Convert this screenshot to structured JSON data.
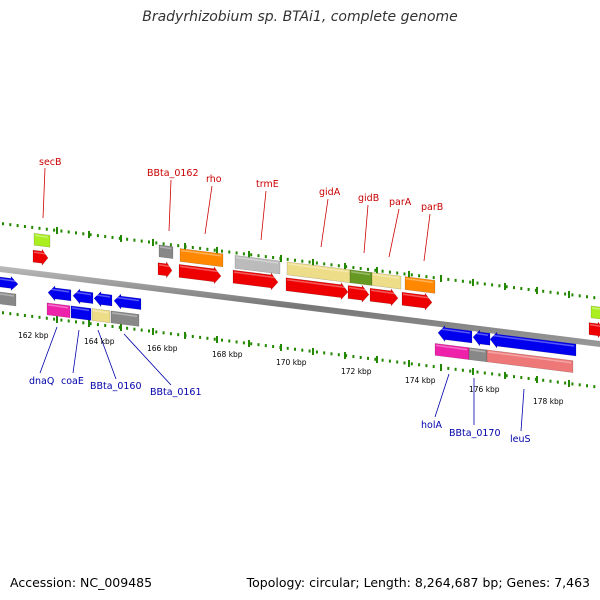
{
  "title": "Bradyrhizobium sp. BTAi1, complete genome",
  "footer": {
    "accession": "Accession: NC_009485",
    "topology": "Topology: circular; Length: 8,264,687 bp; Genes: 7,463"
  },
  "ticks": [
    "162 kbp",
    "164 kbp",
    "166 kbp",
    "168 kbp",
    "170 kbp",
    "172 kbp",
    "174 kbp",
    "176 kbp",
    "178 kbp"
  ],
  "labels_top": [
    "secB",
    "BBta_0162",
    "rho",
    "trmE",
    "gidA",
    "gidB",
    "parA",
    "parB"
  ],
  "labels_bottom": [
    "dnaQ",
    "coaE",
    "BBta_0160",
    "BBta_0161",
    "holA",
    "BBta_0170",
    "leuS"
  ],
  "colors": {
    "red": "#ee0000",
    "blue": "#0000ee",
    "orange": "#ff8800",
    "gray": "#888888",
    "lightgray": "#bbbbbb",
    "khaki": "#eedd88",
    "olive": "#669922",
    "lime": "#aaee22",
    "magenta": "#ee22aa",
    "salmon": "#ee7777",
    "tickgreen": "#228800"
  }
}
